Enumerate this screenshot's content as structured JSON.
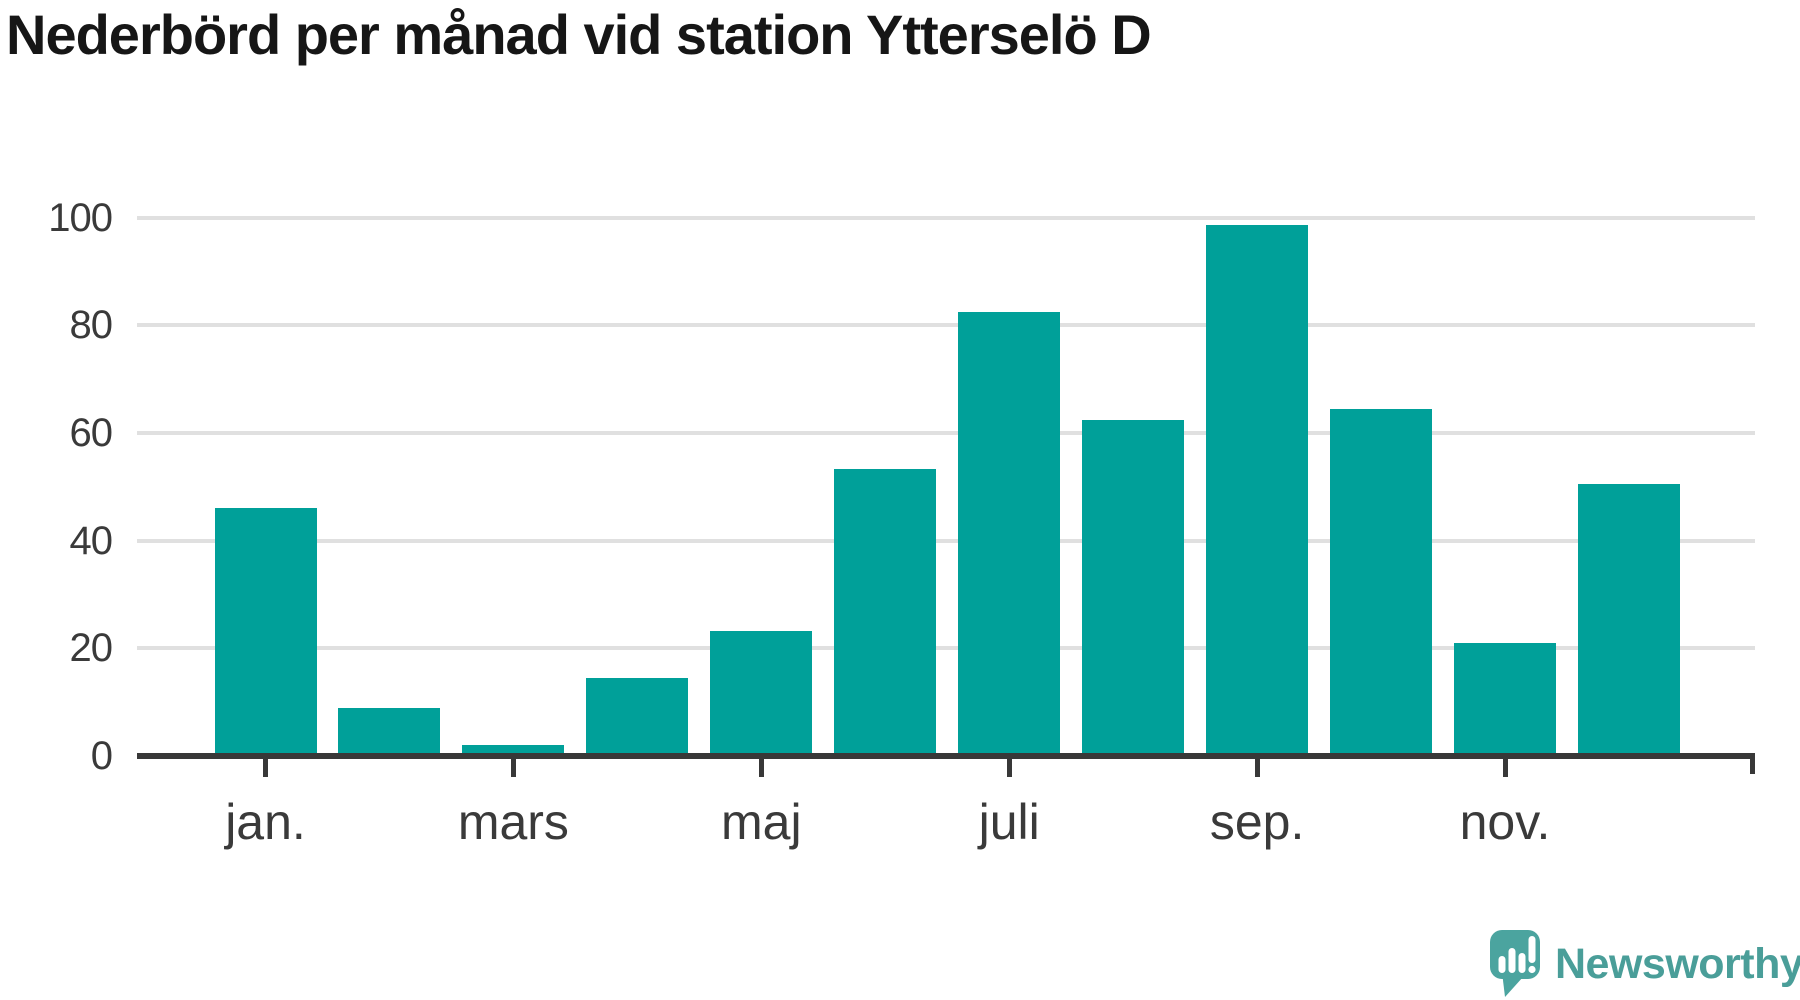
{
  "title": "Nederbörd per månad vid station Ytterselö D",
  "branding": {
    "logo_text": "Newsworthy",
    "logo_text_color": "#4a9e99",
    "logo_mark_color": "#4ba49f"
  },
  "chart_data": {
    "type": "bar",
    "title": "Nederbörd per månad vid station Ytterselö D",
    "values": [
      46,
      9,
      2,
      14.4,
      23.2,
      53.3,
      82.4,
      62.4,
      98.7,
      64.5,
      21,
      50.5
    ],
    "x_tick_labels": [
      "jan.",
      "mars",
      "maj",
      "juli",
      "sep.",
      "nov."
    ],
    "x_tick_bar_indices": [
      0,
      2,
      4,
      6,
      8,
      10
    ],
    "y_ticks": [
      0,
      20,
      40,
      60,
      80,
      100
    ],
    "ylim": [
      0,
      103
    ],
    "grid": true,
    "legend": "none",
    "bar_color": "#00a099",
    "grid_color": "#e0e0e0",
    "axis_color": "#383838",
    "tick_label_color": "#3a3a3a",
    "title_color": "#161616"
  }
}
